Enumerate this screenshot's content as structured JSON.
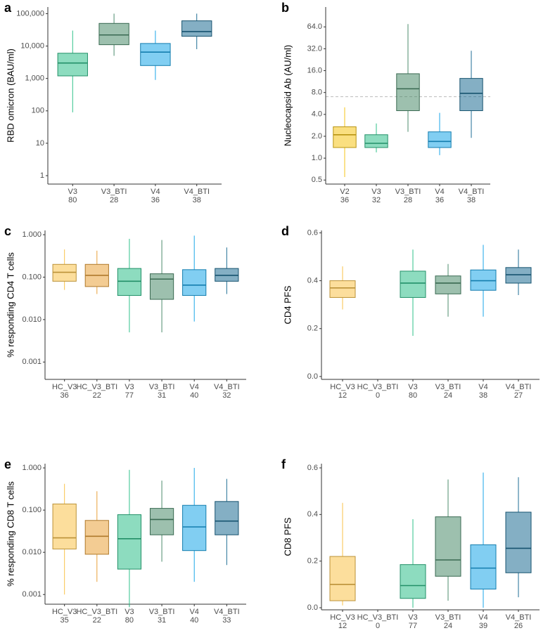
{
  "chart_data": [
    {
      "type": "box",
      "panel": "a",
      "ylabel": "RBD omicron (BAU/ml)",
      "log": true,
      "ylim": [
        0.55,
        160000
      ],
      "yticks": [
        1,
        10,
        100,
        {
          "value": 1000,
          "label": "1,000"
        },
        {
          "value": 10000,
          "label": "10,000"
        },
        {
          "value": 100000,
          "label": "100,000"
        }
      ],
      "categories": [
        "V3",
        "V3_BTI",
        "V4",
        "V4_BTI"
      ],
      "n": [
        80,
        28,
        36,
        38
      ],
      "colors": [
        "#2fc08a",
        "#4c8c6c",
        "#1aa6e8",
        "#1f6e94"
      ],
      "q1": [
        1200,
        11000,
        2500,
        20000
      ],
      "median": [
        3000,
        22000,
        6500,
        28000
      ],
      "q3": [
        6000,
        50000,
        12000,
        60000
      ],
      "whisker_low": [
        90,
        5000,
        900,
        8000
      ],
      "whisker_high": [
        30000,
        100000,
        30000,
        100000
      ]
    },
    {
      "type": "box",
      "panel": "b",
      "ylabel": "Nucleocapsid Ab (AU/ml)",
      "log": true,
      "ylim": [
        0.44,
        120
      ],
      "yticks": [
        0.5,
        {
          "value": 1,
          "label": "1.0"
        },
        {
          "value": 2,
          "label": "2.0"
        },
        {
          "value": 4,
          "label": "4.0"
        },
        {
          "value": 8,
          "label": "8.0"
        },
        {
          "value": 16,
          "label": "16.0"
        },
        {
          "value": 32,
          "label": "32.0"
        },
        {
          "value": 64,
          "label": "64.0"
        }
      ],
      "reference_line": 7,
      "categories": [
        "V2",
        "V3",
        "V3_BTI",
        "V4",
        "V4_BTI"
      ],
      "n": [
        36,
        32,
        28,
        36,
        38
      ],
      "colors": [
        "#f5c518",
        "#2fc08a",
        "#4c8c6c",
        "#1aa6e8",
        "#1f6e94"
      ],
      "q1": [
        1.4,
        1.4,
        4.5,
        1.4,
        4.5
      ],
      "median": [
        2.1,
        1.6,
        9,
        1.7,
        7.8
      ],
      "q3": [
        2.7,
        2.1,
        14.5,
        2.3,
        12.5
      ],
      "whisker_low": [
        0.55,
        1.2,
        2.3,
        1.1,
        1.9
      ],
      "whisker_high": [
        5,
        3,
        70,
        4.2,
        30
      ]
    },
    {
      "type": "box",
      "panel": "c",
      "ylabel": "% responding CD4 T cells",
      "log": true,
      "ylim": [
        0.00039,
        1.26
      ],
      "yticks": [
        0.001,
        {
          "value": 0.01,
          "label": "0.010"
        },
        {
          "value": 0.1,
          "label": "0.100"
        },
        {
          "value": 1,
          "label": "1.000"
        }
      ],
      "categories": [
        "HC_V3",
        "HC_V3_BTI",
        "V3",
        "V3_BTI",
        "V4",
        "V4_BTI"
      ],
      "n": [
        36,
        22,
        77,
        31,
        40,
        32
      ],
      "colors": [
        "#f9c24a",
        "#e9a23b",
        "#2fc08a",
        "#4c8c6c",
        "#1aa6e8",
        "#1f6e94"
      ],
      "q1": [
        0.08,
        0.06,
        0.037,
        0.03,
        0.037,
        0.08
      ],
      "median": [
        0.13,
        0.11,
        0.08,
        0.09,
        0.065,
        0.11
      ],
      "q3": [
        0.2,
        0.2,
        0.16,
        0.12,
        0.15,
        0.16
      ],
      "whisker_low": [
        0.05,
        0.04,
        0.005,
        0.005,
        0.009,
        0.04
      ],
      "whisker_high": [
        0.45,
        0.42,
        0.8,
        0.75,
        0.95,
        0.5
      ]
    },
    {
      "type": "box",
      "panel": "d",
      "ylabel": "CD4 PFS",
      "log": false,
      "ylim": [
        -0.012,
        0.61
      ],
      "yticks": [
        {
          "value": 0,
          "label": "0.0"
        },
        0.2,
        0.4,
        0.6
      ],
      "categories": [
        "HC_V3",
        "HC_V3_BTI",
        "V3",
        "V3_BTI",
        "V4",
        "V4_BTI"
      ],
      "n": [
        12,
        0,
        80,
        24,
        38,
        27
      ],
      "colors": [
        "#f9c24a",
        "#e9a23b",
        "#2fc08a",
        "#4c8c6c",
        "#1aa6e8",
        "#1f6e94"
      ],
      "q1": [
        0.33,
        null,
        0.33,
        0.345,
        0.36,
        0.39
      ],
      "median": [
        0.37,
        null,
        0.39,
        0.39,
        0.4,
        0.425
      ],
      "q3": [
        0.4,
        null,
        0.44,
        0.42,
        0.445,
        0.455
      ],
      "whisker_low": [
        0.28,
        null,
        0.17,
        0.25,
        0.25,
        0.34
      ],
      "whisker_high": [
        0.46,
        null,
        0.53,
        0.47,
        0.55,
        0.53
      ]
    },
    {
      "type": "box",
      "panel": "e",
      "ylabel": "% responding CD8 T cells",
      "log": true,
      "ylim": [
        0.00059,
        1.26
      ],
      "yticks": [
        0.001,
        {
          "value": 0.01,
          "label": "0.010"
        },
        {
          "value": 0.1,
          "label": "0.100"
        },
        {
          "value": 1,
          "label": "1.000"
        }
      ],
      "categories": [
        "HC_V3",
        "HC_V3_BTI",
        "V3",
        "V3_BTI",
        "V4",
        "V4_BTI"
      ],
      "n": [
        35,
        22,
        80,
        31,
        40,
        33
      ],
      "colors": [
        "#f9c24a",
        "#e9a23b",
        "#2fc08a",
        "#4c8c6c",
        "#1aa6e8",
        "#1f6e94"
      ],
      "q1": [
        0.012,
        0.009,
        0.004,
        0.026,
        0.011,
        0.026
      ],
      "median": [
        0.022,
        0.024,
        0.021,
        0.06,
        0.04,
        0.055
      ],
      "q3": [
        0.14,
        0.057,
        0.078,
        0.11,
        0.13,
        0.16
      ],
      "whisker_low": [
        0.001,
        0.002,
        0.0005,
        0.006,
        0.002,
        0.005
      ],
      "whisker_high": [
        0.42,
        0.28,
        0.9,
        0.5,
        1.0,
        0.55
      ]
    },
    {
      "type": "box",
      "panel": "f",
      "ylabel": "CD8 PFS",
      "log": false,
      "ylim": [
        -0.009,
        0.618
      ],
      "yticks": [
        {
          "value": 0,
          "label": "0.0"
        },
        0.2,
        0.4,
        0.6
      ],
      "categories": [
        "HC_V3",
        "HC_V3_BTI",
        "V3",
        "V3_BTI",
        "V4",
        "V4_BTI"
      ],
      "n": [
        12,
        0,
        77,
        24,
        39,
        26
      ],
      "colors": [
        "#f9c24a",
        "#e9a23b",
        "#2fc08a",
        "#4c8c6c",
        "#1aa6e8",
        "#1f6e94"
      ],
      "q1": [
        0.03,
        null,
        0.04,
        0.135,
        0.08,
        0.15
      ],
      "median": [
        0.1,
        null,
        0.095,
        0.205,
        0.17,
        0.255
      ],
      "q3": [
        0.22,
        null,
        0.185,
        0.39,
        0.27,
        0.41
      ],
      "whisker_low": [
        0.01,
        null,
        0,
        0.03,
        0,
        0.045
      ],
      "whisker_high": [
        0.45,
        null,
        0.38,
        0.55,
        0.58,
        0.56
      ]
    }
  ]
}
